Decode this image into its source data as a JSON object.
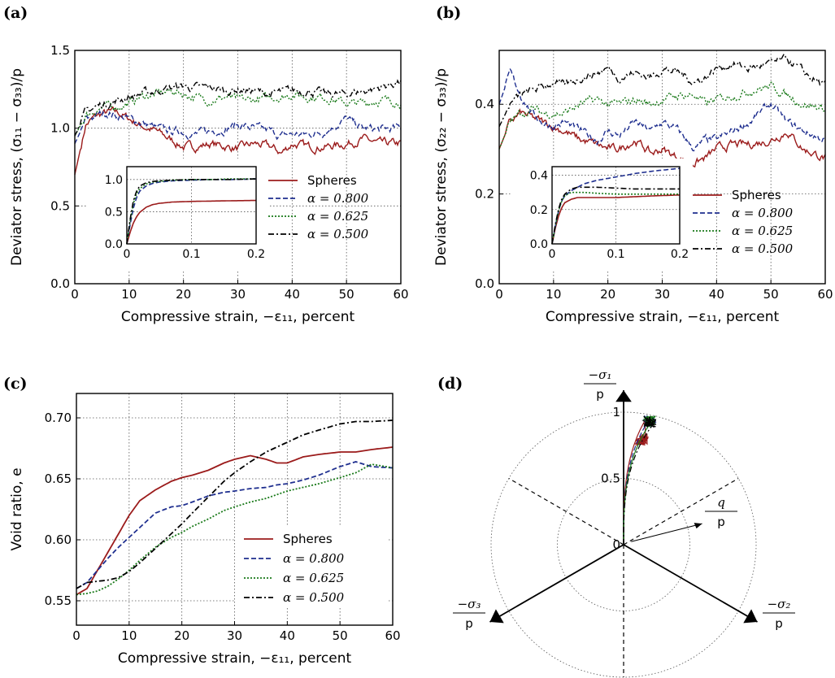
{
  "figure": {
    "panel_labels": [
      "(a)",
      "(b)",
      "(c)",
      "(d)"
    ],
    "xlabel_text": "Compressive strain, −ε₁₁, percent"
  },
  "legend": {
    "entries": [
      {
        "label": "Spheres",
        "color": "#9b1b1b",
        "dash": "solid"
      },
      {
        "label": "α = 0.800",
        "color": "#1f2f8f",
        "dash": "dashed"
      },
      {
        "label": "α = 0.625",
        "color": "#1a7a1a",
        "dash": "dotted"
      },
      {
        "label": "α = 0.500",
        "color": "#000000",
        "dash": "dashdot"
      }
    ]
  },
  "chart_data": [
    {
      "id": "a",
      "type": "line",
      "xlabel": "Compressive strain, −ε₁₁, percent",
      "ylabel": "Deviator stress, (σ₁₁ − σ₃₃)/p",
      "xlim": [
        0,
        60
      ],
      "ylim": [
        0,
        1.5
      ],
      "xticks": [
        "0",
        "10",
        "20",
        "30",
        "40",
        "50",
        "60"
      ],
      "yticks": [
        "0.0",
        "0.5",
        "1.0",
        "1.5"
      ],
      "grid": true,
      "x": [
        0,
        2,
        4,
        6,
        8,
        10,
        12,
        15,
        18,
        20,
        22,
        25,
        28,
        30,
        33,
        36,
        38,
        40,
        43,
        46,
        50,
        53,
        56,
        60
      ],
      "series": [
        {
          "name": "Spheres",
          "values": [
            0.7,
            1.02,
            1.08,
            1.1,
            1.1,
            1.06,
            1.02,
            0.98,
            0.92,
            0.88,
            0.88,
            0.9,
            0.88,
            0.87,
            0.9,
            0.88,
            0.84,
            0.9,
            0.88,
            0.88,
            0.9,
            0.93,
            0.9,
            0.9
          ]
        },
        {
          "name": "α = 0.800",
          "values": [
            0.9,
            1.05,
            1.08,
            1.1,
            1.08,
            1.06,
            1.04,
            1.0,
            0.98,
            0.98,
            0.96,
            0.98,
            1.0,
            1.02,
            1.0,
            0.98,
            0.95,
            0.96,
            0.96,
            0.98,
            1.06,
            1.0,
            0.99,
            1.0
          ]
        },
        {
          "name": "α = 0.625",
          "values": [
            0.95,
            1.08,
            1.12,
            1.14,
            1.14,
            1.16,
            1.2,
            1.22,
            1.24,
            1.22,
            1.2,
            1.18,
            1.2,
            1.18,
            1.18,
            1.2,
            1.2,
            1.22,
            1.2,
            1.2,
            1.16,
            1.16,
            1.18,
            1.17
          ]
        },
        {
          "name": "α = 0.500",
          "values": [
            0.95,
            1.1,
            1.14,
            1.16,
            1.18,
            1.2,
            1.22,
            1.24,
            1.26,
            1.27,
            1.26,
            1.26,
            1.24,
            1.25,
            1.24,
            1.22,
            1.23,
            1.24,
            1.24,
            1.22,
            1.22,
            1.24,
            1.26,
            1.3
          ]
        }
      ],
      "inset": {
        "xlim": [
          0,
          0.2
        ],
        "ylim": [
          0,
          1.2
        ],
        "xticks": [
          "0",
          "0.1",
          "0.2"
        ],
        "yticks": [
          "0.0",
          "0.5",
          "1.0"
        ],
        "x": [
          0,
          0.005,
          0.01,
          0.015,
          0.02,
          0.03,
          0.04,
          0.05,
          0.07,
          0.1,
          0.13,
          0.16,
          0.2
        ],
        "series": [
          {
            "name": "Spheres",
            "values": [
              0,
              0.18,
              0.32,
              0.42,
              0.49,
              0.57,
              0.61,
              0.63,
              0.65,
              0.66,
              0.665,
              0.67,
              0.675
            ]
          },
          {
            "name": "α = 0.800",
            "values": [
              0,
              0.3,
              0.55,
              0.72,
              0.82,
              0.9,
              0.94,
              0.96,
              0.98,
              0.99,
              1.0,
              1.0,
              1.01
            ]
          },
          {
            "name": "α = 0.625",
            "values": [
              0,
              0.35,
              0.62,
              0.78,
              0.86,
              0.93,
              0.96,
              0.97,
              0.99,
              1.0,
              1.0,
              1.01,
              1.01
            ]
          },
          {
            "name": "α = 0.500",
            "values": [
              0,
              0.38,
              0.66,
              0.82,
              0.9,
              0.95,
              0.97,
              0.98,
              0.99,
              1.0,
              1.0,
              1.0,
              1.01
            ]
          }
        ]
      }
    },
    {
      "id": "b",
      "type": "line",
      "xlabel": "Compressive strain, −ε₁₁, percent",
      "ylabel": "Deviator stress, (σ₂₂ − σ₃₃)/p",
      "xlim": [
        0,
        60
      ],
      "ylim": [
        0,
        0.52
      ],
      "xticks": [
        "0",
        "10",
        "20",
        "30",
        "40",
        "50",
        "60"
      ],
      "yticks": [
        "0.0",
        "0.2",
        "0.4"
      ],
      "grid": true,
      "x": [
        0,
        2,
        4,
        6,
        8,
        10,
        12,
        15,
        18,
        20,
        22,
        25,
        28,
        30,
        33,
        36,
        38,
        40,
        43,
        46,
        50,
        53,
        56,
        60
      ],
      "series": [
        {
          "name": "Spheres",
          "values": [
            0.3,
            0.36,
            0.38,
            0.37,
            0.36,
            0.35,
            0.34,
            0.32,
            0.31,
            0.3,
            0.3,
            0.32,
            0.29,
            0.3,
            0.28,
            0.27,
            0.28,
            0.3,
            0.31,
            0.31,
            0.32,
            0.34,
            0.3,
            0.28
          ]
        },
        {
          "name": "α = 0.800",
          "values": [
            0.4,
            0.47,
            0.42,
            0.38,
            0.36,
            0.35,
            0.36,
            0.34,
            0.32,
            0.34,
            0.33,
            0.36,
            0.34,
            0.36,
            0.34,
            0.3,
            0.32,
            0.32,
            0.34,
            0.36,
            0.4,
            0.36,
            0.34,
            0.32
          ]
        },
        {
          "name": "α = 0.625",
          "values": [
            0.3,
            0.36,
            0.38,
            0.39,
            0.38,
            0.38,
            0.38,
            0.4,
            0.41,
            0.4,
            0.4,
            0.41,
            0.4,
            0.41,
            0.42,
            0.42,
            0.4,
            0.41,
            0.42,
            0.43,
            0.44,
            0.42,
            0.4,
            0.39
          ]
        },
        {
          "name": "α = 0.500",
          "values": [
            0.35,
            0.4,
            0.42,
            0.43,
            0.44,
            0.45,
            0.44,
            0.46,
            0.47,
            0.48,
            0.46,
            0.47,
            0.46,
            0.48,
            0.47,
            0.45,
            0.46,
            0.48,
            0.49,
            0.48,
            0.49,
            0.5,
            0.47,
            0.44
          ]
        }
      ],
      "inset": {
        "xlim": [
          0,
          0.2
        ],
        "ylim": [
          0,
          0.45
        ],
        "xticks": [
          "0",
          "0.1",
          "0.2"
        ],
        "yticks": [
          "0.0",
          "0.2",
          "0.4"
        ],
        "x": [
          0,
          0.005,
          0.01,
          0.015,
          0.02,
          0.03,
          0.04,
          0.05,
          0.07,
          0.1,
          0.13,
          0.16,
          0.2
        ],
        "series": [
          {
            "name": "Spheres",
            "values": [
              0,
              0.09,
              0.16,
              0.21,
              0.24,
              0.26,
              0.27,
              0.27,
              0.27,
              0.27,
              0.275,
              0.28,
              0.285
            ]
          },
          {
            "name": "α = 0.800",
            "values": [
              0,
              0.1,
              0.19,
              0.25,
              0.28,
              0.31,
              0.33,
              0.35,
              0.37,
              0.39,
              0.41,
              0.425,
              0.44
            ]
          },
          {
            "name": "α = 0.625",
            "values": [
              0,
              0.1,
              0.19,
              0.25,
              0.28,
              0.3,
              0.3,
              0.3,
              0.295,
              0.29,
              0.29,
              0.29,
              0.29
            ]
          },
          {
            "name": "α = 0.500",
            "values": [
              0,
              0.11,
              0.2,
              0.26,
              0.29,
              0.32,
              0.33,
              0.33,
              0.33,
              0.325,
              0.32,
              0.32,
              0.32
            ]
          }
        ]
      }
    },
    {
      "id": "c",
      "type": "line",
      "xlabel": "Compressive strain, −ε₁₁, percent",
      "ylabel": "Void ratio, e",
      "xlim": [
        0,
        60
      ],
      "ylim": [
        0.53,
        0.72
      ],
      "xticks": [
        "0",
        "10",
        "20",
        "30",
        "40",
        "50",
        "60"
      ],
      "yticks": [
        "0.55",
        "0.60",
        "0.65",
        "0.70"
      ],
      "grid": true,
      "x": [
        0,
        2,
        4,
        6,
        8,
        10,
        12,
        15,
        18,
        20,
        22,
        25,
        28,
        30,
        33,
        36,
        38,
        40,
        43,
        46,
        50,
        53,
        56,
        60
      ],
      "series": [
        {
          "name": "Spheres",
          "values": [
            0.555,
            0.56,
            0.575,
            0.59,
            0.605,
            0.62,
            0.632,
            0.641,
            0.648,
            0.651,
            0.653,
            0.657,
            0.663,
            0.666,
            0.669,
            0.666,
            0.663,
            0.663,
            0.668,
            0.67,
            0.672,
            0.672,
            0.674,
            0.676
          ]
        },
        {
          "name": "α = 0.800",
          "values": [
            0.56,
            0.565,
            0.575,
            0.585,
            0.594,
            0.602,
            0.61,
            0.622,
            0.627,
            0.628,
            0.631,
            0.636,
            0.639,
            0.64,
            0.642,
            0.643,
            0.645,
            0.646,
            0.649,
            0.653,
            0.66,
            0.664,
            0.66,
            0.659
          ]
        },
        {
          "name": "α = 0.625",
          "values": [
            0.555,
            0.556,
            0.558,
            0.562,
            0.568,
            0.575,
            0.583,
            0.594,
            0.602,
            0.606,
            0.611,
            0.617,
            0.624,
            0.627,
            0.631,
            0.634,
            0.637,
            0.64,
            0.643,
            0.646,
            0.651,
            0.655,
            0.662,
            0.659
          ]
        },
        {
          "name": "α = 0.500",
          "values": [
            0.56,
            0.565,
            0.566,
            0.567,
            0.569,
            0.574,
            0.581,
            0.593,
            0.605,
            0.613,
            0.622,
            0.635,
            0.648,
            0.655,
            0.664,
            0.672,
            0.676,
            0.68,
            0.686,
            0.69,
            0.695,
            0.697,
            0.697,
            0.698
          ]
        }
      ]
    },
    {
      "id": "d",
      "type": "polar",
      "axis_labels": {
        "s1_num": "−σ₁",
        "s1_den": "p",
        "s2_num": "−σ₂",
        "s2_den": "p",
        "s3_num": "−σ₃",
        "s3_den": "p",
        "q_num": "q",
        "q_den": "p"
      },
      "rticks": [
        "0",
        "0.5",
        "1"
      ],
      "series_endpoint_r": 0.95,
      "series_endpoint_angle_deg": 12
    }
  ]
}
